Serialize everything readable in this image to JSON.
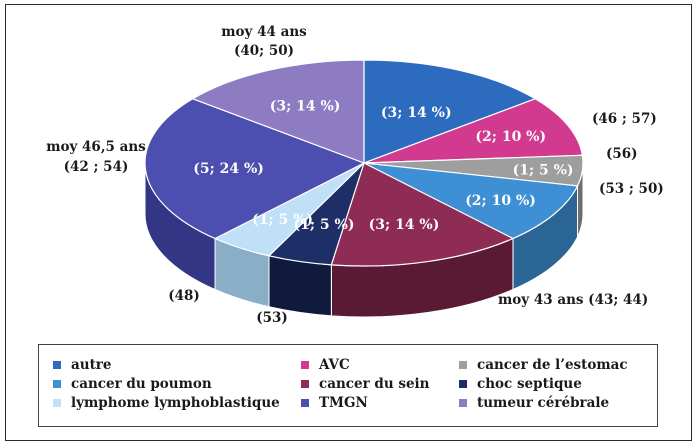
{
  "chart_data": {
    "type": "pie",
    "categories": [
      "autre",
      "AVC",
      "cancer de l’estomac",
      "cancer du poumon",
      "cancer du sein",
      "choc septique",
      "lymphome lymphoblastique",
      "TMGN",
      "tumeur cérébrale"
    ],
    "values": [
      3,
      2,
      1,
      2,
      3,
      1,
      1,
      5,
      3
    ],
    "percents": [
      14,
      10,
      5,
      10,
      14,
      5,
      5,
      24,
      14
    ],
    "slice_labels": [
      "(3; 14 %)",
      "(2; 10 %)",
      "(1; 5 %)",
      "(2; 10 %)",
      "(3; 14 %)",
      "(1; 5 %)",
      "(1; 5 %)",
      "(5; 24 %)",
      "(3; 14 %)"
    ],
    "colors": [
      "#2d6bbf",
      "#d23a8f",
      "#9e9e9e",
      "#3f8fd4",
      "#8f2c55",
      "#1d2f66",
      "#bfe0f6",
      "#4d4fb0",
      "#8e7cc3"
    ],
    "side_colors": [
      "#1d4a86",
      "#93275f",
      "#6e6e6e",
      "#2a6596",
      "#5b1a34",
      "#0f1a3d",
      "#8aaec6",
      "#333585",
      "#62538d"
    ],
    "age_annotations": [
      "(46 ; 57)",
      "(56)",
      "(53 ; 50)",
      "moy 43 ans (43; 44)",
      "(53)",
      "(48)",
      "moy 46,5 ans",
      "(42 ; 54)",
      "moy 44 ans",
      "(40; 50)"
    ],
    "legend": {
      "position": "bottom",
      "labels": [
        "autre",
        "AVC",
        "cancer de l’estomac",
        "cancer du poumon",
        "cancer du sein",
        "choc septique",
        "lymphome lymphoblastique",
        "TMGN",
        "tumeur cérébrale"
      ]
    }
  }
}
